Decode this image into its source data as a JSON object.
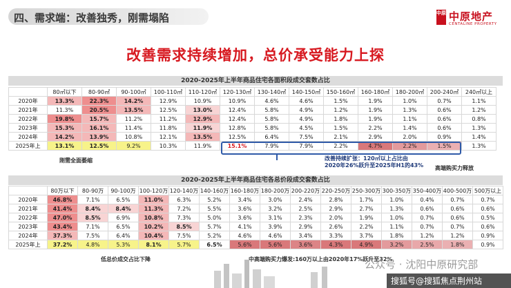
{
  "header": {
    "section_title": "四、需求端：改善独秀，刚需塌陷",
    "logo_cn": "中原地产",
    "logo_badge": "中原",
    "logo_en": "CENTALINE PROPERTY"
  },
  "headline": "改善需求持续增加，总价承受能力上探",
  "table1": {
    "title": "2020-2025年上半年商品住宅各面积段成交套数占比",
    "columns": [
      "80㎡以下",
      "80-90㎡",
      "90-100㎡",
      "100-110㎡",
      "110-120㎡",
      "120-130㎡",
      "130-140㎡",
      "140-150㎡",
      "150-160㎡",
      "160-180㎡",
      "180-200㎡",
      "200-240㎡",
      "240㎡以上"
    ],
    "rows": [
      {
        "label": "2020年",
        "cells": [
          "13.3%",
          "22.3%",
          "14.2%",
          "12.9%",
          "10.9%",
          "10.9%",
          "4.6%",
          "4.6%",
          "1.5%",
          "1.9%",
          "1.0%",
          "0.7%",
          "1.1%"
        ]
      },
      {
        "label": "2021年",
        "cells": [
          "11.3%",
          "20.5%",
          "13.5%",
          "12.5%",
          "13.0%",
          "12.4%",
          "5.8%",
          "4.9%",
          "1.2%",
          "1.9%",
          "1.3%",
          "0.6%",
          "1.2%"
        ]
      },
      {
        "label": "2022年",
        "cells": [
          "19.8%",
          "15.7%",
          "11.2%",
          "11.2%",
          "12.9%",
          "12.4%",
          "5.8%",
          "4.9%",
          "1.8%",
          "1.9%",
          "1.1%",
          "0.6%",
          "0.8%"
        ]
      },
      {
        "label": "2023年",
        "cells": [
          "15.3%",
          "16.1%",
          "11.4%",
          "11.8%",
          "11.9%",
          "12.8%",
          "5.8%",
          "4.5%",
          "1.5%",
          "2.2%",
          "1.4%",
          "0.6%",
          "1.3%"
        ]
      },
      {
        "label": "2024年",
        "cells": [
          "14.2%",
          "13.9%",
          "10.8%",
          "12.1%",
          "13.5%",
          "12.5%",
          "6.4%",
          "7.5%",
          "2.1%",
          "2.9%",
          "2.0%",
          "0.9%",
          "1.4%"
        ]
      },
      {
        "label": "2025年上",
        "cells": [
          "13.1%",
          "12.5%",
          "9.2%",
          "10.3%",
          "11.9%",
          "15.1%",
          "7.9%",
          "7.9%",
          "2.2%",
          "4.7%",
          "2.2%",
          "1.5%",
          "1.3%"
        ]
      }
    ],
    "note_left": "刚需全面萎缩",
    "callout_line1": "改善持续扩张：120㎡以上占比由",
    "callout_line2": "2020年26%跃升至2025年H1的43%",
    "note_right": "高端购买力释放"
  },
  "table2": {
    "title": "2020-2025年上半年商品住宅各总价段成交套数占比",
    "columns": [
      "80万以下",
      "80-90万",
      "90-100万",
      "100-120万",
      "120-140万",
      "140-160万",
      "160-180万",
      "180-200万",
      "200-220万",
      "220-250万",
      "250-300万",
      "300-350万",
      "350-400万",
      "400-500万",
      "500万以上"
    ],
    "rows": [
      {
        "label": "2020年",
        "cells": [
          "46.8%",
          "7.1%",
          "6.5%",
          "11.0%",
          "6.3%",
          "5.2%",
          "3.4%",
          "3.0%",
          "2.4%",
          "2.8%",
          "1.7%",
          "1.0%",
          "0.4%",
          "0.7%",
          "0.7%"
        ]
      },
      {
        "label": "2021年",
        "cells": [
          "41.4%",
          "8.4%",
          "8.4%",
          "11.3%",
          "7.2%",
          "5.5%",
          "3.6%",
          "3.2%",
          "2.5%",
          "2.9%",
          "2.7%",
          "1.3%",
          "0.6%",
          "0.6%",
          "0.6%"
        ]
      },
      {
        "label": "2022年",
        "cells": [
          "47.0%",
          "8.5%",
          "6.9%",
          "10.8%",
          "7.3%",
          "5.0%",
          "3.6%",
          "3.1%",
          "2.3%",
          "2.0%",
          "1.9%",
          "1.0%",
          "0.7%",
          "0.6%",
          "0.5%"
        ]
      },
      {
        "label": "2023年",
        "cells": [
          "43.4%",
          "7.1%",
          "6.5%",
          "10.2%",
          "8.5%",
          "5.7%",
          "4.1%",
          "3.9%",
          "2.9%",
          "2.6%",
          "2.2%",
          "1.1%",
          "0.7%",
          "0.7%",
          "0.6%"
        ]
      },
      {
        "label": "2024年",
        "cells": [
          "37.3%",
          "7.5%",
          "6.4%",
          "10.4%",
          "7.5%",
          "5.2%",
          "4.6%",
          "4.6%",
          "3.4%",
          "3.3%",
          "3.7%",
          "1.8%",
          "1.2%",
          "1.2%",
          "0.9%"
        ]
      },
      {
        "label": "2025年上",
        "cells": [
          "37.2%",
          "4.8%",
          "5.3%",
          "8.1%",
          "5.7%",
          "6.5%",
          "5.6%",
          "5.6%",
          "3.6%",
          "4.3%",
          "4.9%",
          "3.2%",
          "2.5%",
          "1.8%",
          "0.9%"
        ]
      }
    ],
    "note_left": "低总价成交占比下降",
    "note_right": "中高端购买力爆发:160万以上由2020年17%跃升至32%"
  },
  "watermark": "公众号 · 沈阳中原研究部",
  "source": "搜狐号@搜狐焦点荆州站"
}
